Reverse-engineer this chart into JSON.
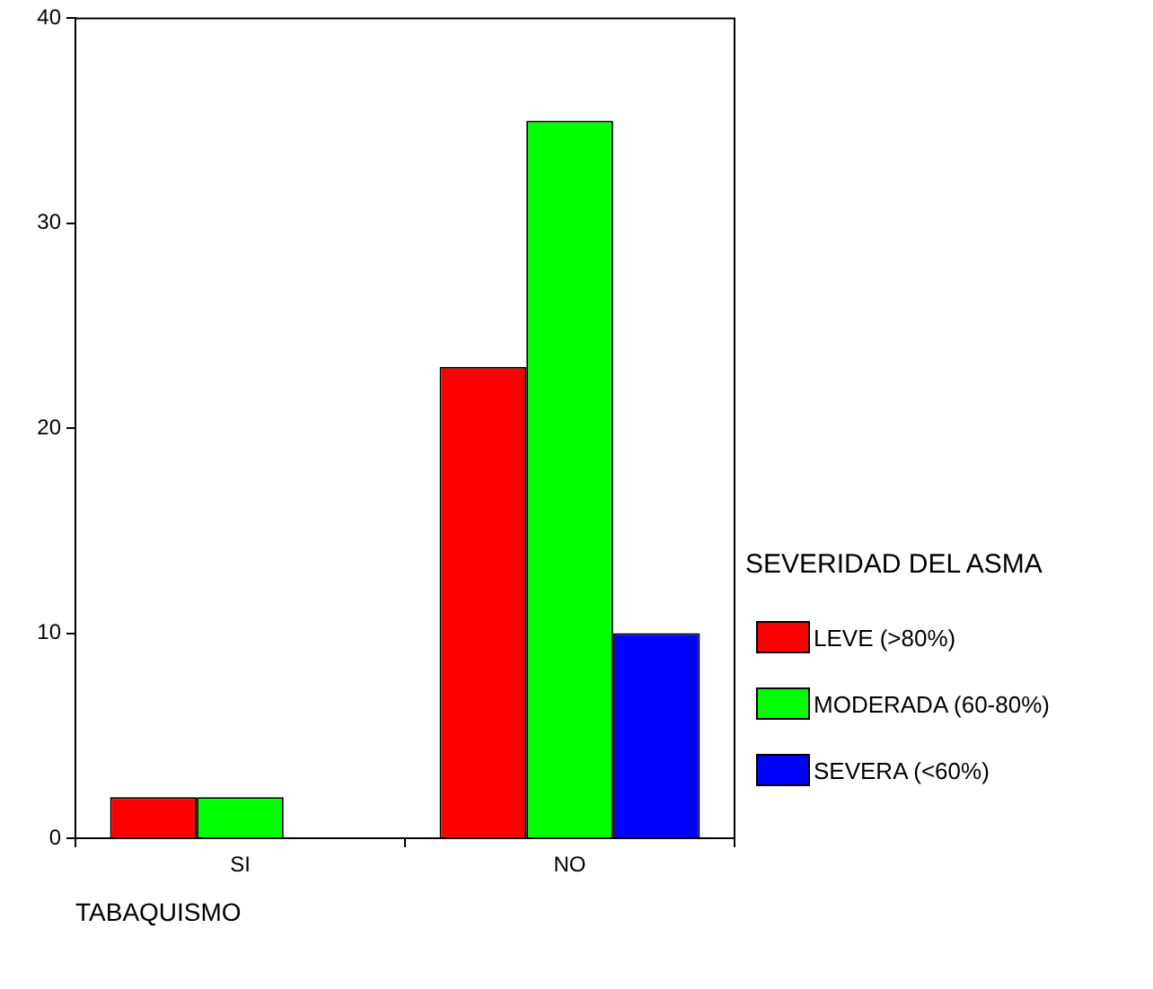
{
  "chart_data": {
    "type": "bar",
    "xlabel": "TABAQUISMO",
    "legend_title": "SEVERIDAD DEL ASMA",
    "categories": [
      "SI",
      "NO"
    ],
    "series": [
      {
        "name": "LEVE (>80%)",
        "color": "#ff0000",
        "values": [
          2,
          23
        ]
      },
      {
        "name": "MODERADA (60-80%)",
        "color": "#00ff00",
        "values": [
          2,
          35
        ]
      },
      {
        "name": "SEVERA (<60%)",
        "color": "#0000ff",
        "values": [
          0,
          10
        ]
      }
    ],
    "ylim": [
      0,
      40
    ],
    "yticks": [
      0,
      10,
      20,
      30,
      40
    ],
    "grid": false,
    "legend": "right"
  }
}
